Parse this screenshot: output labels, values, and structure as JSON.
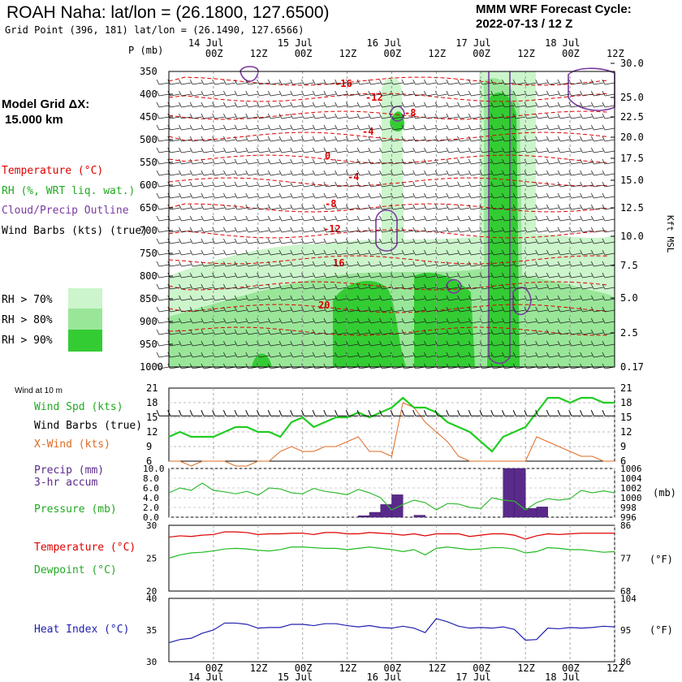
{
  "header": {
    "title": "ROAH Naha:  lat/lon = (26.1800, 127.6500)",
    "subtitle": "Grid Point (396, 181) lat/lon = (26.1490, 127.6566)",
    "cycle_label": "MMM WRF Forecast Cycle:",
    "cycle_value": "2022-07-13 / 12  Z"
  },
  "left": {
    "model_grid_label": "Model Grid ΔX:",
    "model_grid_value": "15.000 km",
    "legend_temperature": "Temperature (°C)",
    "legend_rh": "RH (%, WRT liq. wat.)",
    "legend_cloud": "Cloud/Precip Outline",
    "legend_wind": "Wind Barbs (kts) (true)",
    "rh70": "RH > 70%",
    "rh80": "RH > 80%",
    "rh90": "RH > 90%"
  },
  "colors": {
    "temperature": "#dd0000",
    "rh70": "#ccf5cc",
    "rh80": "#99e699",
    "rh90": "#33cc33",
    "cloud": "#7a3aa0",
    "wind_spd": "#22cc22",
    "x_wind": "#dd6a22",
    "precip": "#5a2a8a",
    "pressure": "#33bb33",
    "dewpoint": "#22bb22",
    "heat_index": "#2020b0"
  },
  "time_axis": {
    "top_hours": [
      "00Z",
      "12Z",
      "00Z",
      "12Z",
      "00Z",
      "12Z",
      "00Z",
      "12Z",
      "00Z",
      "12Z"
    ],
    "top_days": [
      "14 Jul",
      "15 Jul",
      "16 Jul",
      "17 Jul",
      "18 Jul"
    ],
    "bottom_hours": [
      "00Z",
      "12Z",
      "00Z",
      "12Z",
      "00Z",
      "12Z",
      "00Z",
      "12Z",
      "00Z",
      "12Z"
    ],
    "bottom_days": [
      "14 Jul",
      "15 Jul",
      "16 Jul",
      "17 Jul",
      "18 Jul"
    ]
  },
  "panel1": {
    "p_label": "P (mb)",
    "kft_label": "Kft MSL",
    "pressure_ticks": [
      "350",
      "400",
      "450",
      "500",
      "550",
      "600",
      "650",
      "700",
      "750",
      "800",
      "850",
      "900",
      "950",
      "1000"
    ],
    "kft_ticks": [
      "30.0",
      "25.0",
      "22.5",
      "20.0",
      "17.5",
      "15.0",
      "12.5",
      "10.0",
      "7.5",
      "5.0",
      "2.5",
      "0.17"
    ],
    "temp_labels": [
      "-16",
      "-12",
      "-8",
      "-4",
      "0",
      "-4",
      "-8",
      "-12",
      "16",
      "20"
    ]
  },
  "panel2": {
    "wind_at": "Wind at 10 m",
    "label_wind_spd": "Wind Spd (kts)",
    "label_wind_barbs": "Wind Barbs (true)",
    "label_x_wind": "X-Wind (kts)",
    "y_ticks": [
      "21",
      "18",
      "15",
      "12",
      "9",
      "6"
    ]
  },
  "panel3": {
    "label_precip": "Precip (mm)",
    "label_precip2": "3-hr accum",
    "label_pressure": "Pressure (mb)",
    "y_ticks_left": [
      "10.0",
      "8.0",
      "6.0",
      "4.0",
      "2.0",
      "0.0"
    ],
    "y_ticks_right": [
      "1006",
      "1004",
      "1002",
      "1000",
      "998",
      "996"
    ],
    "mb_label": "(mb)"
  },
  "panel4": {
    "label_temp": "Temperature (°C)",
    "label_dew": "Dewpoint (°C)",
    "y_ticks_left": [
      "30",
      "25",
      "20"
    ],
    "y_ticks_right": [
      "86",
      "77",
      "68"
    ],
    "unit_right": "(°F)"
  },
  "panel5": {
    "label_hi": "Heat Index (°C)",
    "y_ticks_left": [
      "40",
      "35",
      "30"
    ],
    "y_ticks_right": [
      "104",
      "95",
      "86"
    ],
    "unit_right": "(°F)"
  },
  "chart_data": [
    {
      "type": "line",
      "title": "Wind at 10 m",
      "ylim": [
        6,
        21
      ],
      "x_hours": [
        0,
        3,
        6,
        9,
        12,
        15,
        18,
        21,
        24,
        27,
        30,
        33,
        36,
        39,
        42,
        45,
        48,
        51,
        54,
        57,
        60,
        63,
        66,
        69,
        72,
        75,
        78,
        81,
        84,
        87,
        90,
        93,
        96,
        99,
        102,
        105,
        108,
        111,
        114,
        117,
        120
      ],
      "series": [
        {
          "name": "Wind Spd (kts)",
          "values": [
            11,
            12,
            11,
            11,
            11,
            12,
            13,
            13,
            12,
            12,
            11,
            14,
            15,
            13,
            14,
            15,
            15,
            16,
            15,
            16,
            17,
            19,
            17,
            17,
            16,
            14,
            13,
            12,
            10,
            8,
            11,
            12,
            13,
            16,
            19,
            19,
            18,
            19,
            19,
            18,
            18
          ]
        },
        {
          "name": "X-Wind (kts)",
          "values": [
            6,
            6,
            5,
            6,
            6,
            6,
            5,
            5,
            6,
            6,
            8,
            9,
            8,
            8,
            9,
            9,
            10,
            11,
            8,
            8,
            7,
            18,
            17,
            14,
            12,
            10,
            7,
            6,
            6,
            6,
            6,
            6,
            6,
            11,
            10,
            9,
            8,
            7,
            7,
            6,
            6
          ]
        }
      ]
    },
    {
      "type": "bar",
      "title": "Precip (mm) 3-hr accum",
      "ylim": [
        0,
        10
      ],
      "x_hours": [
        54,
        57,
        60,
        63,
        69,
        93,
        96,
        99,
        102
      ],
      "values": [
        0.3,
        1.0,
        2.6,
        4.6,
        0.4,
        10.0,
        10.0,
        1.8,
        2.1
      ]
    },
    {
      "type": "line",
      "title": "Pressure (mb)",
      "ylim": [
        996,
        1006
      ],
      "x_hours": [
        0,
        3,
        6,
        9,
        12,
        15,
        18,
        21,
        24,
        27,
        30,
        33,
        36,
        39,
        42,
        45,
        48,
        51,
        54,
        57,
        60,
        63,
        66,
        69,
        72,
        75,
        78,
        81,
        84,
        87,
        90,
        93,
        96,
        99,
        102,
        105,
        108,
        111,
        114,
        117,
        120
      ],
      "values": [
        1001.0,
        1002.0,
        1001.5,
        1003.0,
        1001.5,
        1001.2,
        1000.8,
        1001.3,
        1000.5,
        1002.0,
        1001.8,
        1001.0,
        1000.8,
        1001.9,
        1001.3,
        1001.0,
        1000.6,
        1001.7,
        1001.0,
        1000.0,
        997.5,
        998.6,
        999.5,
        999.0,
        997.5,
        998.8,
        998.7,
        998.0,
        997.8,
        1000.0,
        999.5,
        999.3,
        997.5,
        999.0,
        999.8,
        999.5,
        999.8,
        1001.5,
        1001.0,
        1001.4,
        1001.0
      ]
    },
    {
      "type": "line",
      "title": "Temperature / Dewpoint",
      "ylim": [
        20,
        30
      ],
      "x_hours": [
        0,
        3,
        6,
        9,
        12,
        15,
        18,
        21,
        24,
        27,
        30,
        33,
        36,
        39,
        42,
        45,
        48,
        51,
        54,
        57,
        60,
        63,
        66,
        69,
        72,
        75,
        78,
        81,
        84,
        87,
        90,
        93,
        96,
        99,
        102,
        105,
        108,
        111,
        114,
        117,
        120
      ],
      "series": [
        {
          "name": "Temperature (°C)",
          "values": [
            28.2,
            28.4,
            28.3,
            28.5,
            28.6,
            29.0,
            29.0,
            28.9,
            28.6,
            28.7,
            28.7,
            28.8,
            28.8,
            28.6,
            28.9,
            28.9,
            28.7,
            28.7,
            28.9,
            28.8,
            28.7,
            28.5,
            28.7,
            28.4,
            28.7,
            28.7,
            28.7,
            28.3,
            28.5,
            28.7,
            28.7,
            28.5,
            27.9,
            28.4,
            28.7,
            28.6,
            28.7,
            28.8,
            28.8,
            28.8,
            28.8
          ]
        },
        {
          "name": "Dewpoint (°C)",
          "values": [
            25.0,
            25.5,
            25.8,
            25.9,
            26.1,
            26.4,
            26.5,
            26.4,
            26.2,
            26.1,
            26.3,
            26.7,
            26.7,
            26.6,
            26.5,
            26.5,
            26.3,
            26.5,
            26.7,
            26.5,
            26.3,
            26.0,
            26.3,
            25.5,
            26.5,
            26.7,
            26.5,
            26.3,
            26.4,
            26.6,
            26.6,
            26.4,
            25.8,
            26.0,
            26.6,
            26.5,
            26.3,
            26.3,
            26.1,
            25.9,
            26.0
          ]
        }
      ]
    },
    {
      "type": "line",
      "title": "Heat Index (°C)",
      "ylim": [
        30,
        40
      ],
      "x_hours": [
        0,
        3,
        6,
        9,
        12,
        15,
        18,
        21,
        24,
        27,
        30,
        33,
        36,
        39,
        42,
        45,
        48,
        51,
        54,
        57,
        60,
        63,
        66,
        69,
        72,
        75,
        78,
        81,
        84,
        87,
        90,
        93,
        96,
        99,
        102,
        105,
        108,
        111,
        114,
        117,
        120
      ],
      "values": [
        33.0,
        33.5,
        33.7,
        34.5,
        35.0,
        36.1,
        36.1,
        35.9,
        35.3,
        35.4,
        35.4,
        35.9,
        35.9,
        35.7,
        36.0,
        36.0,
        35.7,
        35.5,
        35.7,
        35.4,
        35.3,
        35.6,
        35.3,
        34.6,
        36.8,
        36.3,
        35.6,
        35.3,
        35.4,
        35.3,
        35.5,
        35.1,
        33.4,
        33.5,
        35.3,
        35.2,
        35.4,
        35.3,
        35.4,
        35.6,
        35.5
      ]
    }
  ]
}
